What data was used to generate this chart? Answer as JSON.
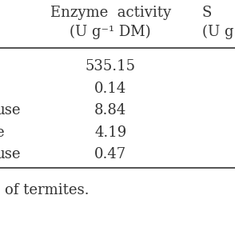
{
  "col1_header_line1": "Enzyme  activity",
  "col1_header_line2": "(U g⁻¹ DM)",
  "col2_header_line1": "S",
  "col2_header_line2": "(U g",
  "row_labels": [
    "",
    "",
    "use",
    "e",
    "use"
  ],
  "col1_values": [
    "535.15",
    "0.14",
    "8.84",
    "4.19",
    "0.47"
  ],
  "footer": "of termites.",
  "bg_color": "#ffffff",
  "text_color": "#333333",
  "font_size": 13,
  "header_font_size": 13,
  "line_color": "#444444"
}
